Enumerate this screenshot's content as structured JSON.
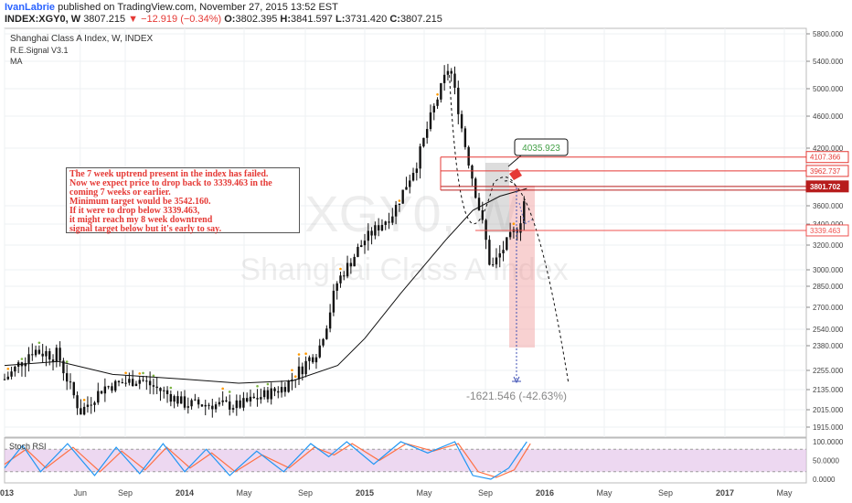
{
  "header": {
    "author": "IvanLabrie",
    "published": "published on TradingView.com, November 27, 2015 13:52 EST",
    "symbol": "INDEX:XGY0, W",
    "last": "3807.215",
    "change": "−12.919 (−0.34%)",
    "o_label": "O:",
    "o": "3802.395",
    "h_label": "H:",
    "h": "3841.597",
    "l_label": "L:",
    "l": "3731.420",
    "c_label": "C:",
    "c": "3807.215"
  },
  "chart_data": {
    "type": "candlestick",
    "title": "Shanghai Class A Index, W, INDEX",
    "indicators": [
      "R.E.Signal V3.1",
      "MA"
    ],
    "watermark": [
      "XGY0, W",
      "Shanghai Class A Index"
    ],
    "price_scale_labels": [
      "5800.000",
      "5400.000",
      "5000.000",
      "4600.000",
      "4200.000",
      "3600.000",
      "3400.000",
      "3200.000",
      "3000.000",
      "2850.000",
      "2700.000",
      "2540.000",
      "2380.000",
      "2255.000",
      "2135.000",
      "2015.000",
      "1915.000"
    ],
    "ylim": [
      1850,
      5900
    ],
    "x_labels": [
      "2013",
      "Jun",
      "Sep",
      "2014",
      "May",
      "Sep",
      "2015",
      "May",
      "Sep",
      "2016",
      "May",
      "Sep",
      "2017",
      "May"
    ],
    "price_path": [
      [
        2013.0,
        2200
      ],
      [
        2013.15,
        2360
      ],
      [
        2013.3,
        2330
      ],
      [
        2013.42,
        2000
      ],
      [
        2013.55,
        2150
      ],
      [
        2013.75,
        2200
      ],
      [
        2014.0,
        2050
      ],
      [
        2014.3,
        2040
      ],
      [
        2014.55,
        2150
      ],
      [
        2014.75,
        2380
      ],
      [
        2014.85,
        2900
      ],
      [
        2015.0,
        3250
      ],
      [
        2015.15,
        3500
      ],
      [
        2015.3,
        4100
      ],
      [
        2015.45,
        5200
      ],
      [
        2015.47,
        5350
      ],
      [
        2015.55,
        4300
      ],
      [
        2015.62,
        3700
      ],
      [
        2015.7,
        3000
      ],
      [
        2015.78,
        3200
      ],
      [
        2015.86,
        3400
      ],
      [
        2015.9,
        3807
      ]
    ],
    "moving_average": [
      [
        2013.0,
        2280
      ],
      [
        2013.3,
        2300
      ],
      [
        2013.6,
        2230
      ],
      [
        2014.0,
        2200
      ],
      [
        2014.3,
        2175
      ],
      [
        2014.6,
        2190
      ],
      [
        2014.85,
        2280
      ],
      [
        2015.0,
        2450
      ],
      [
        2015.2,
        2800
      ],
      [
        2015.45,
        3250
      ],
      [
        2015.6,
        3550
      ],
      [
        2015.75,
        3700
      ],
      [
        2015.9,
        3780
      ]
    ],
    "levels": [
      {
        "label": "4107.366",
        "value": 4107.366,
        "color": "#e53935"
      },
      {
        "label": "3962.737",
        "value": 3962.737,
        "color": "#e53935"
      },
      {
        "label": "3801.702",
        "value": 3801.702,
        "color": "#b71c1c"
      },
      {
        "label": "3339.463",
        "value": 3339.463,
        "color": "#ef5350"
      }
    ],
    "callout": "4035.923",
    "measure_label": "-1621.546 (-42.63%)",
    "annotation_lines": [
      "The 7 week uptrend present in the index has failed.",
      "Now we expect price to drop back to 3339.463 in the",
      "coming 7 weeks or earlier.",
      "Minimum target would be 3542.160.",
      "If it were to drop below 3339.463,",
      "it might reach my 8 week downtrend",
      "signal target below but it's early to say."
    ],
    "stoch": {
      "name": "Stoch RSI",
      "labels": [
        "100.0000",
        "50.0000",
        "0.0000"
      ],
      "ylim": [
        0,
        100
      ],
      "band": [
        20,
        80
      ],
      "k": [
        [
          2013.0,
          30
        ],
        [
          2013.1,
          90
        ],
        [
          2013.2,
          20
        ],
        [
          2013.35,
          95
        ],
        [
          2013.5,
          10
        ],
        [
          2013.62,
          85
        ],
        [
          2013.75,
          15
        ],
        [
          2013.88,
          95
        ],
        [
          2014.0,
          20
        ],
        [
          2014.12,
          80
        ],
        [
          2014.25,
          10
        ],
        [
          2014.4,
          75
        ],
        [
          2014.55,
          20
        ],
        [
          2014.7,
          95
        ],
        [
          2014.8,
          60
        ],
        [
          2014.9,
          100
        ],
        [
          2015.05,
          40
        ],
        [
          2015.2,
          100
        ],
        [
          2015.35,
          70
        ],
        [
          2015.5,
          100
        ],
        [
          2015.6,
          10
        ],
        [
          2015.7,
          0
        ],
        [
          2015.8,
          30
        ],
        [
          2015.9,
          100
        ]
      ],
      "d": [
        [
          2013.0,
          40
        ],
        [
          2013.12,
          80
        ],
        [
          2013.23,
          30
        ],
        [
          2013.38,
          85
        ],
        [
          2013.53,
          20
        ],
        [
          2013.65,
          75
        ],
        [
          2013.78,
          25
        ],
        [
          2013.9,
          85
        ],
        [
          2014.03,
          30
        ],
        [
          2014.15,
          70
        ],
        [
          2014.28,
          20
        ],
        [
          2014.43,
          65
        ],
        [
          2014.58,
          30
        ],
        [
          2014.72,
          85
        ],
        [
          2014.83,
          65
        ],
        [
          2014.93,
          95
        ],
        [
          2015.08,
          50
        ],
        [
          2015.23,
          95
        ],
        [
          2015.38,
          75
        ],
        [
          2015.52,
          95
        ],
        [
          2015.63,
          20
        ],
        [
          2015.73,
          5
        ],
        [
          2015.83,
          25
        ],
        [
          2015.92,
          95
        ]
      ]
    },
    "colors": {
      "up": "#26a69a",
      "down": "#ef5350",
      "candle": "#111111",
      "ma": "#111111",
      "stoch_k": "#2196f3",
      "stoch_d": "#ff7043",
      "band": "#e1bee7"
    }
  }
}
